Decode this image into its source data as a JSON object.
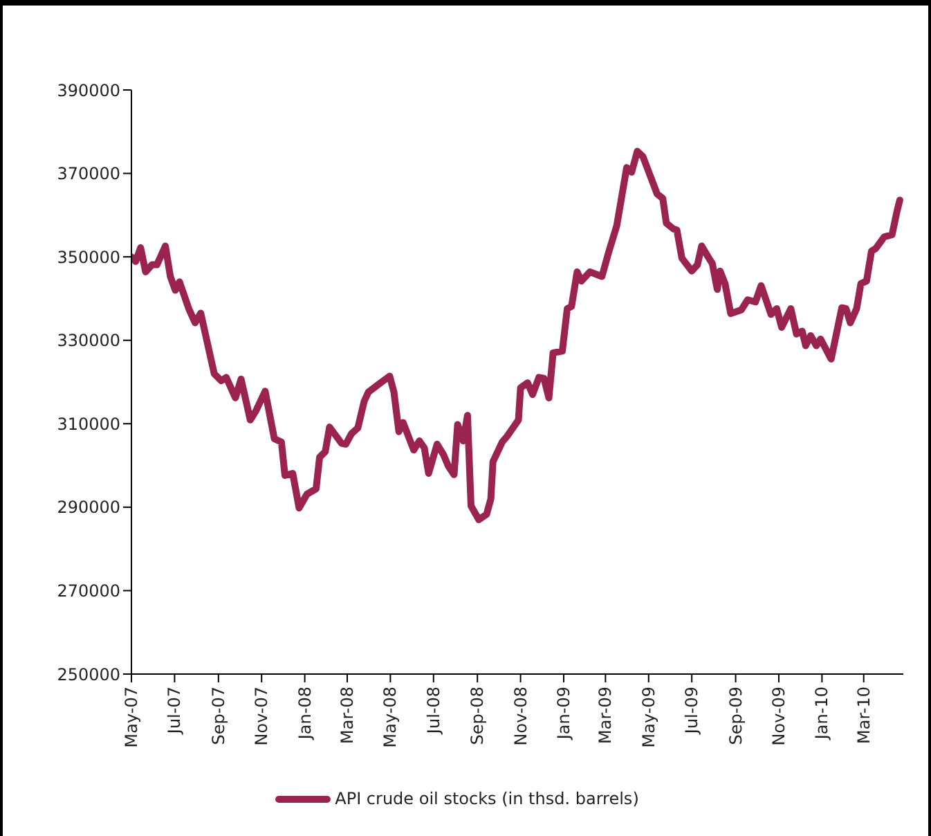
{
  "chart_data": {
    "type": "line",
    "x": [
      "2007-05-01",
      "2007-05-07",
      "2007-05-14",
      "2007-05-21",
      "2007-05-30",
      "2007-06-06",
      "2007-06-18",
      "2007-06-25",
      "2007-07-02",
      "2007-07-08",
      "2007-07-21",
      "2007-07-30",
      "2007-08-07",
      "2007-08-26",
      "2007-09-05",
      "2007-09-12",
      "2007-09-25",
      "2007-10-03",
      "2007-10-16",
      "2007-10-24",
      "2007-11-06",
      "2007-11-19",
      "2007-11-29",
      "2007-12-04",
      "2007-12-15",
      "2007-12-24",
      "2008-01-04",
      "2008-01-17",
      "2008-01-22",
      "2008-01-30",
      "2008-02-05",
      "2008-02-22",
      "2008-02-28",
      "2008-03-07",
      "2008-03-16",
      "2008-03-25",
      "2008-03-31",
      "2008-04-17",
      "2008-04-30",
      "2008-05-06",
      "2008-05-13",
      "2008-05-19",
      "2008-06-03",
      "2008-06-11",
      "2008-06-18",
      "2008-06-24",
      "2008-07-06",
      "2008-07-15",
      "2008-07-22",
      "2008-07-30",
      "2008-08-04",
      "2008-08-12",
      "2008-08-18",
      "2008-08-23",
      "2008-09-03",
      "2008-09-14",
      "2008-09-20",
      "2008-09-23",
      "2008-10-06",
      "2008-10-13",
      "2008-10-29",
      "2008-11-01",
      "2008-11-11",
      "2008-11-18",
      "2008-11-27",
      "2008-12-04",
      "2008-12-11",
      "2008-12-17",
      "2008-12-30",
      "2009-01-06",
      "2009-01-12",
      "2009-01-20",
      "2009-01-26",
      "2009-02-07",
      "2009-02-24",
      "2009-03-05",
      "2009-03-17",
      "2009-03-31",
      "2009-04-07",
      "2009-04-15",
      "2009-04-23",
      "2009-05-13",
      "2009-05-21",
      "2009-05-26",
      "2009-06-05",
      "2009-06-10",
      "2009-06-17",
      "2009-07-01",
      "2009-07-09",
      "2009-07-15",
      "2009-07-24",
      "2009-07-30",
      "2009-08-06",
      "2009-08-10",
      "2009-08-17",
      "2009-08-25",
      "2009-09-09",
      "2009-09-18",
      "2009-09-29",
      "2009-10-07",
      "2009-10-21",
      "2009-10-29",
      "2009-11-05",
      "2009-11-18",
      "2009-11-26",
      "2009-12-04",
      "2009-12-09",
      "2009-12-16",
      "2009-12-24",
      "2009-12-30",
      "2010-01-14",
      "2010-01-29",
      "2010-02-04",
      "2010-02-10",
      "2010-02-19",
      "2010-02-25",
      "2010-03-05",
      "2010-03-12",
      "2010-03-18",
      "2010-03-30",
      "2010-04-10",
      "2010-04-17",
      "2010-04-21"
    ],
    "series": [
      {
        "name": "API crude oil stocks (in thsd. barrels)",
        "color": "#9b2350",
        "values": [
          350000,
          348900,
          352200,
          346400,
          348100,
          348100,
          352600,
          345300,
          342000,
          344000,
          337600,
          334200,
          336500,
          322000,
          320300,
          321100,
          316200,
          320700,
          310900,
          313100,
          317800,
          306400,
          305600,
          297600,
          298100,
          289800,
          293100,
          294400,
          302000,
          303300,
          309200,
          305300,
          305100,
          307600,
          309000,
          315400,
          317600,
          319800,
          321400,
          317600,
          308100,
          310300,
          303700,
          305900,
          304200,
          298100,
          305100,
          302600,
          299800,
          297800,
          309800,
          305900,
          312000,
          290300,
          287000,
          288300,
          292000,
          300900,
          305600,
          307000,
          310900,
          318600,
          319800,
          317000,
          321100,
          320900,
          316200,
          327000,
          327400,
          337600,
          338100,
          346400,
          344200,
          346400,
          345300,
          350800,
          357500,
          371400,
          370300,
          375300,
          374000,
          365100,
          364000,
          358100,
          356700,
          356400,
          349700,
          346600,
          348100,
          352600,
          350000,
          348400,
          342200,
          346600,
          343600,
          336400,
          337300,
          339700,
          339200,
          343100,
          336200,
          337600,
          333100,
          337600,
          331500,
          332200,
          328700,
          331100,
          328700,
          330300,
          325500,
          337800,
          337600,
          334200,
          337600,
          343600,
          344200,
          351400,
          352000,
          354800,
          355300,
          360900,
          363600
        ]
      }
    ],
    "xlim": [
      "2007-05-01",
      "2010-04-26"
    ],
    "xticks": [
      {
        "value": "2007-05-01",
        "label": "May-07"
      },
      {
        "value": "2007-07-01",
        "label": "Jul-07"
      },
      {
        "value": "2007-09-01",
        "label": "Sep-07"
      },
      {
        "value": "2007-11-01",
        "label": "Nov-07"
      },
      {
        "value": "2008-01-01",
        "label": "Jan-08"
      },
      {
        "value": "2008-03-01",
        "label": "Mar-08"
      },
      {
        "value": "2008-05-01",
        "label": "May-08"
      },
      {
        "value": "2008-07-01",
        "label": "Jul-08"
      },
      {
        "value": "2008-09-01",
        "label": "Sep-08"
      },
      {
        "value": "2008-11-01",
        "label": "Nov-08"
      },
      {
        "value": "2009-01-01",
        "label": "Jan-09"
      },
      {
        "value": "2009-03-01",
        "label": "Mar-09"
      },
      {
        "value": "2009-05-01",
        "label": "May-09"
      },
      {
        "value": "2009-07-01",
        "label": "Jul-09"
      },
      {
        "value": "2009-09-01",
        "label": "Sep-09"
      },
      {
        "value": "2009-11-01",
        "label": "Nov-09"
      },
      {
        "value": "2010-01-01",
        "label": "Jan-10"
      },
      {
        "value": "2010-03-01",
        "label": "Mar-10"
      }
    ],
    "ylim": [
      250000,
      390000
    ],
    "yticks": [
      250000,
      270000,
      290000,
      310000,
      330000,
      350000,
      370000,
      390000
    ],
    "legend": "bottom",
    "line_style": "solid"
  }
}
